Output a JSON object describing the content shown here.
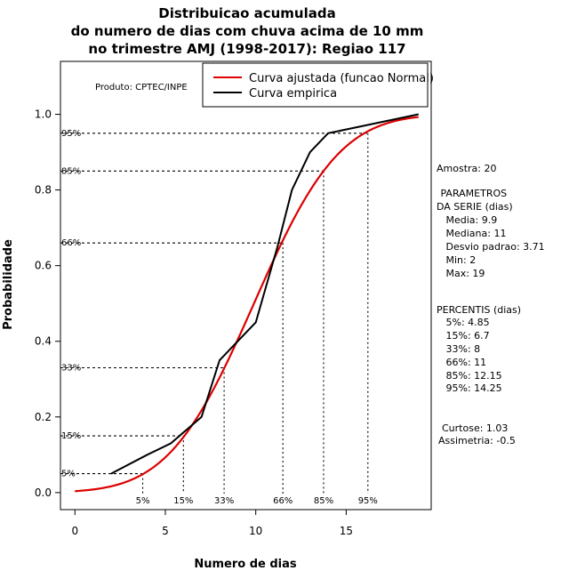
{
  "chart_data": {
    "type": "line",
    "title_lines": [
      "Distribuicao acumulada",
      "do numero de dias com chuva acima de 10 mm",
      "no trimestre AMJ (1998-2017): Regiao 117"
    ],
    "xlabel": "Numero de dias",
    "ylabel": "Probabilidade",
    "xlim": [
      -0.8,
      19.7
    ],
    "ylim": [
      -0.045,
      1.14
    ],
    "x_ticks": [
      0,
      5,
      10,
      15
    ],
    "y_ticks": [
      0.0,
      0.2,
      0.4,
      0.6,
      0.8,
      1.0
    ],
    "x_tick_labels": [
      "0",
      "5",
      "10",
      "15"
    ],
    "y_tick_labels": [
      "0.0",
      "0.2",
      "0.4",
      "0.6",
      "0.8",
      "1.0"
    ],
    "grid": false,
    "legend_position": "top-right",
    "legend": [
      {
        "name": "Curva ajustada (funcao Normal)",
        "color": "#dd0000"
      },
      {
        "name": "Curva empirica",
        "color": "#000000"
      }
    ],
    "fitted_normal": {
      "mean": 9.9,
      "sd": 3.71,
      "x_range": [
        0,
        19
      ]
    },
    "series": [
      {
        "name": "Curva empirica",
        "color": "#000000",
        "x": [
          2,
          4,
          5.3,
          7,
          8,
          10,
          11.2,
          12,
          13,
          14,
          19
        ],
        "y": [
          0.05,
          0.1,
          0.13,
          0.2,
          0.35,
          0.45,
          0.65,
          0.8,
          0.9,
          0.95,
          1.0
        ]
      }
    ],
    "percentile_guides": [
      {
        "label": "5%",
        "prob": 0.05,
        "x": 3.75
      },
      {
        "label": "15%",
        "prob": 0.15,
        "x": 6.0
      },
      {
        "label": "33%",
        "prob": 0.33,
        "x": 8.25
      },
      {
        "label": "66%",
        "prob": 0.66,
        "x": 11.5
      },
      {
        "label": "85%",
        "prob": 0.85,
        "x": 13.75
      },
      {
        "label": "95%",
        "prob": 0.95,
        "x": 16.2
      }
    ],
    "annotations": {
      "product": "Produto: CPTEC/INPE",
      "stats_lines": [
        "Amostra: 20",
        " PARAMETROS",
        "DA SERIE (dias)",
        "   Media: 9.9",
        "   Mediana: 11",
        "   Desvio padrao: 3.71",
        "   Min: 2",
        "   Max: 19",
        "PERCENTIS (dias)",
        "   5%: 4.85",
        "   15%: 6.7",
        "   33%: 8",
        "   66%: 11",
        "   85%: 12.15",
        "   95%: 14.25",
        "Curtose: 1.03",
        "Assimetria: -0.5"
      ]
    }
  }
}
